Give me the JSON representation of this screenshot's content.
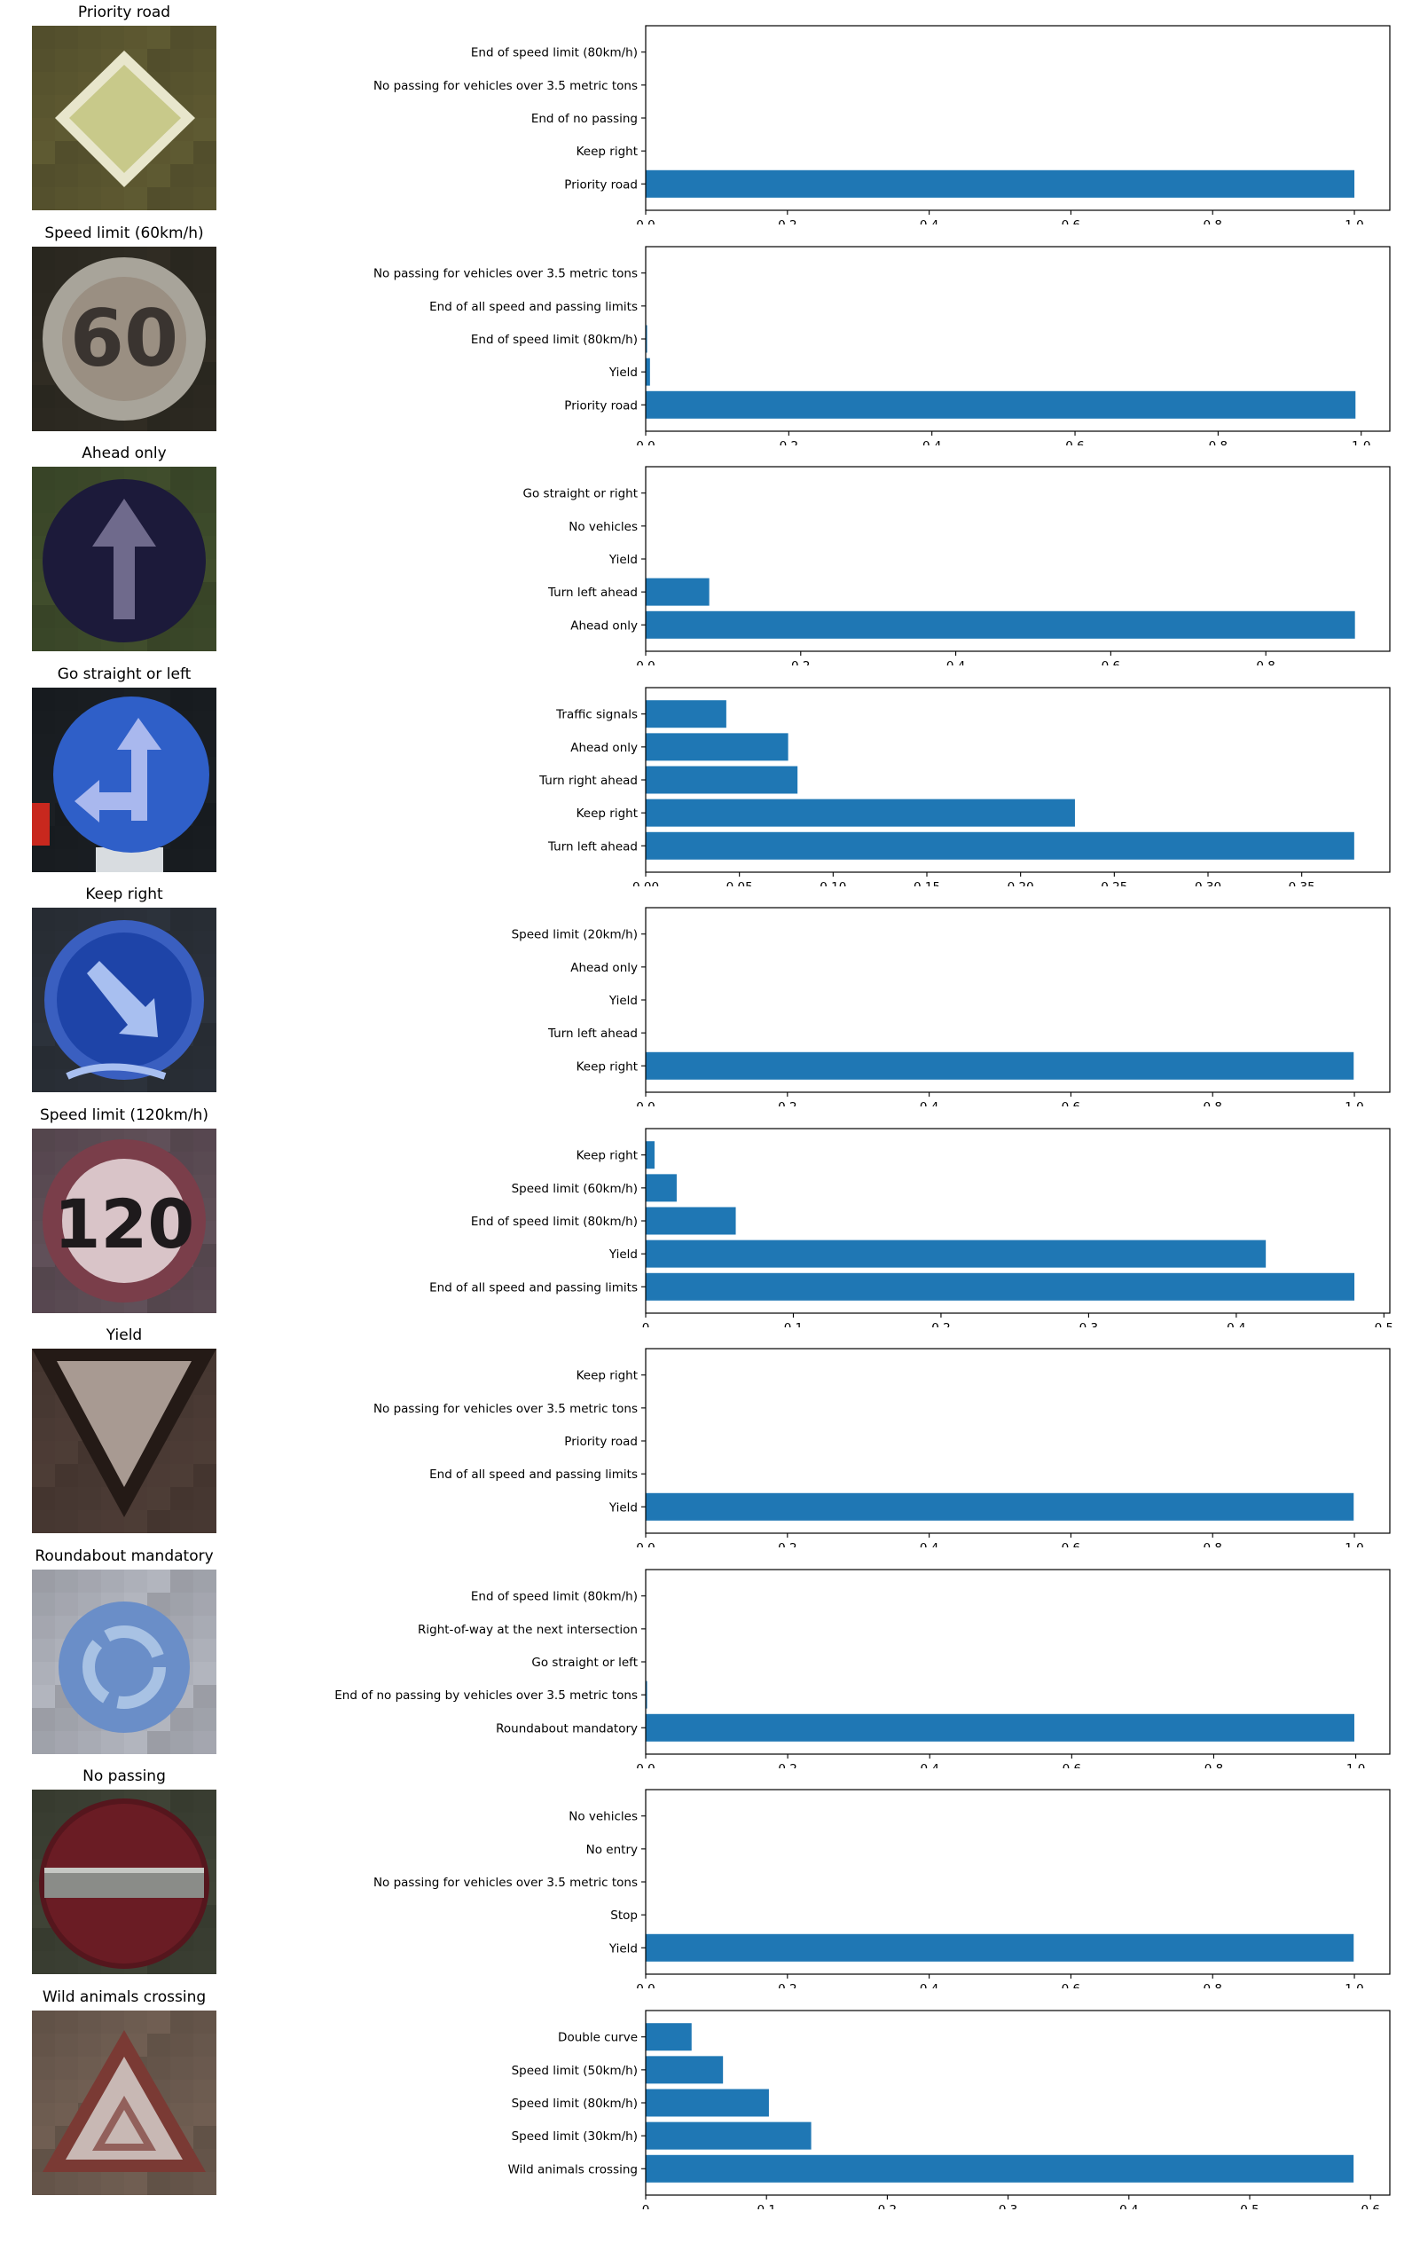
{
  "colors": {
    "bar": "#1f77b4",
    "background": "#ffffff",
    "axes": "#000000"
  },
  "panels": [
    {
      "title": "Priority road",
      "image": {
        "kind": "priority-road-sign",
        "bg": "#5a5630",
        "sign": "#c8c98a"
      },
      "chart_data": {
        "type": "bar",
        "orientation": "horizontal",
        "categories": [
          "Priority road",
          "Keep right",
          "End of no passing",
          "No passing for vehicles over 3.5 metric tons",
          "End of speed limit (80km/h)"
        ],
        "values": [
          1.0,
          0,
          0,
          0,
          0
        ],
        "xlim": [
          0,
          1.05
        ],
        "xticks": [
          0,
          0.2,
          0.4,
          0.6,
          0.8,
          1.0
        ],
        "xtick_labels": [
          "0.0",
          "0.2",
          "0.4",
          "0.6",
          "0.8",
          "1.0"
        ],
        "grid": false
      }
    },
    {
      "title": "Speed limit (60km/h)",
      "image": {
        "kind": "speed-limit-sign",
        "text": "60",
        "bg": "#2e2a22",
        "ring": "#a8a49a",
        "face": "#9a8f82",
        "digits": "#3a3430"
      },
      "chart_data": {
        "type": "bar",
        "orientation": "horizontal",
        "categories": [
          "Priority road",
          "Yield",
          "End of speed limit (80km/h)",
          "End of all speed and passing limits",
          "No passing for vehicles over 3.5 metric tons"
        ],
        "values": [
          0.992,
          0.006,
          0.002,
          0.0,
          0.0
        ],
        "xlim": [
          0,
          1.04
        ],
        "xticks": [
          0,
          0.2,
          0.4,
          0.6,
          0.8,
          1.0
        ],
        "xtick_labels": [
          "0.0",
          "0.2",
          "0.4",
          "0.6",
          "0.8",
          "1.0"
        ],
        "grid": false
      }
    },
    {
      "title": "Ahead only",
      "image": {
        "kind": "ahead-only-sign",
        "bg": "#3d4a2a",
        "disc": "#1c1a3a",
        "arrow": "#6f6a8c"
      },
      "chart_data": {
        "type": "bar",
        "orientation": "horizontal",
        "categories": [
          "Ahead only",
          "Turn left ahead",
          "Yield",
          "No vehicles",
          "Go straight or right"
        ],
        "values": [
          0.915,
          0.082,
          0.0,
          0.0,
          0.0
        ],
        "xlim": [
          0,
          0.96
        ],
        "xticks": [
          0,
          0.2,
          0.4,
          0.6,
          0.8
        ],
        "xtick_labels": [
          "0.0",
          "0.2",
          "0.4",
          "0.6",
          "0.8"
        ],
        "grid": false
      }
    },
    {
      "title": "Go straight or left",
      "image": {
        "kind": "go-straight-left-sign",
        "bg": "#1a1e22",
        "disc": "#2f5fc8",
        "arrow": "#a9b8ee"
      },
      "chart_data": {
        "type": "bar",
        "orientation": "horizontal",
        "categories": [
          "Turn left ahead",
          "Keep right",
          "Turn right ahead",
          "Ahead only",
          "Traffic signals"
        ],
        "values": [
          0.378,
          0.229,
          0.081,
          0.076,
          0.043
        ],
        "xlim": [
          0,
          0.397
        ],
        "xticks": [
          0,
          0.05,
          0.1,
          0.15,
          0.2,
          0.25,
          0.3,
          0.35
        ],
        "xtick_labels": [
          "0.00",
          "0.05",
          "0.10",
          "0.15",
          "0.20",
          "0.25",
          "0.30",
          "0.35"
        ],
        "grid": false
      }
    },
    {
      "title": "Keep right",
      "image": {
        "kind": "keep-right-sign",
        "bg": "#2a3038",
        "disc": "#1e44a8",
        "arrow": "#a8bff0"
      },
      "chart_data": {
        "type": "bar",
        "orientation": "horizontal",
        "categories": [
          "Keep right",
          "Turn left ahead",
          "Yield",
          "Ahead only",
          "Speed limit (20km/h)"
        ],
        "values": [
          0.999,
          0.0,
          0.0,
          0.0,
          0.0
        ],
        "xlim": [
          0,
          1.05
        ],
        "xticks": [
          0,
          0.2,
          0.4,
          0.6,
          0.8,
          1.0
        ],
        "xtick_labels": [
          "0.0",
          "0.2",
          "0.4",
          "0.6",
          "0.8",
          "1.0"
        ],
        "grid": false
      }
    },
    {
      "title": "Speed limit (120km/h)",
      "image": {
        "kind": "speed-limit-sign",
        "text": "120",
        "bg": "#5c4c54",
        "ring": "#7a3e4a",
        "face": "#d9c4c8",
        "digits": "#1e1a1c"
      },
      "chart_data": {
        "type": "bar",
        "orientation": "horizontal",
        "categories": [
          "End of all speed and passing limits",
          "Yield",
          "End of speed limit (80km/h)",
          "Speed limit (60km/h)",
          "Keep right"
        ],
        "values": [
          0.48,
          0.42,
          0.061,
          0.021,
          0.006
        ],
        "xlim": [
          0,
          0.504
        ],
        "xticks": [
          0,
          0.1,
          0.2,
          0.3,
          0.4,
          0.5
        ],
        "xtick_labels": [
          "0",
          "0.1",
          "0.2",
          "0.3",
          "0.4",
          "0.5"
        ],
        "grid": false
      }
    },
    {
      "title": "Yield",
      "image": {
        "kind": "yield-sign",
        "bg": "#4a3a34",
        "border": "#241a16",
        "face": "#a89a92"
      },
      "chart_data": {
        "type": "bar",
        "orientation": "horizontal",
        "categories": [
          "Yield",
          "End of all speed and passing limits",
          "Priority road",
          "No passing for vehicles over 3.5 metric tons",
          "Keep right"
        ],
        "values": [
          0.999,
          0.0,
          0.0,
          0.0,
          0.0
        ],
        "xlim": [
          0,
          1.05
        ],
        "xticks": [
          0,
          0.2,
          0.4,
          0.6,
          0.8,
          1.0
        ],
        "xtick_labels": [
          "0.0",
          "0.2",
          "0.4",
          "0.6",
          "0.8",
          "1.0"
        ],
        "grid": false
      }
    },
    {
      "title": "Roundabout mandatory",
      "image": {
        "kind": "roundabout-sign",
        "bg": "#a8acb4",
        "disc": "#6a8ec8",
        "arrow": "#a8c2e4"
      },
      "chart_data": {
        "type": "bar",
        "orientation": "horizontal",
        "categories": [
          "Roundabout mandatory",
          "End of no passing by vehicles over 3.5 metric tons",
          "Go straight or left",
          "Right-of-way at the next intersection",
          "End of speed limit (80km/h)"
        ],
        "values": [
          0.998,
          0.002,
          0.0,
          0.0,
          0.0
        ],
        "xlim": [
          0,
          1.048
        ],
        "xticks": [
          0,
          0.2,
          0.4,
          0.6,
          0.8,
          1.0
        ],
        "xtick_labels": [
          "0.0",
          "0.2",
          "0.4",
          "0.6",
          "0.8",
          "1.0"
        ],
        "grid": false
      }
    },
    {
      "title": "No passing",
      "image": {
        "kind": "no-entry-sign",
        "bg": "#3c4034",
        "disc": "#6a1c24",
        "bar": "#8a8c88"
      },
      "chart_data": {
        "type": "bar",
        "orientation": "horizontal",
        "categories": [
          "Yield",
          "Stop",
          "No passing for vehicles over 3.5 metric tons",
          "No entry",
          "No vehicles"
        ],
        "values": [
          0.999,
          0.0,
          0.0,
          0.0,
          0.0
        ],
        "xlim": [
          0,
          1.05
        ],
        "xticks": [
          0,
          0.2,
          0.4,
          0.6,
          0.8,
          1.0
        ],
        "xtick_labels": [
          "0.0",
          "0.2",
          "0.4",
          "0.6",
          "0.8",
          "1.0"
        ],
        "grid": false
      }
    },
    {
      "title": "Wild animals crossing",
      "image": {
        "kind": "warning-triangle-sign",
        "bg": "#6a5a4e",
        "border": "#7a3a34",
        "face": "#c8b8b4"
      },
      "chart_data": {
        "type": "bar",
        "orientation": "horizontal",
        "categories": [
          "Wild animals crossing",
          "Speed limit (30km/h)",
          "Speed limit (80km/h)",
          "Speed limit (50km/h)",
          "Double curve"
        ],
        "values": [
          0.586,
          0.137,
          0.102,
          0.064,
          0.038
        ],
        "xlim": [
          0,
          0.616
        ],
        "xticks": [
          0,
          0.1,
          0.2,
          0.3,
          0.4,
          0.5,
          0.6
        ],
        "xtick_labels": [
          "0",
          "0.1",
          "0.2",
          "0.3",
          "0.4",
          "0.5",
          "0.6"
        ],
        "grid": false
      }
    }
  ]
}
